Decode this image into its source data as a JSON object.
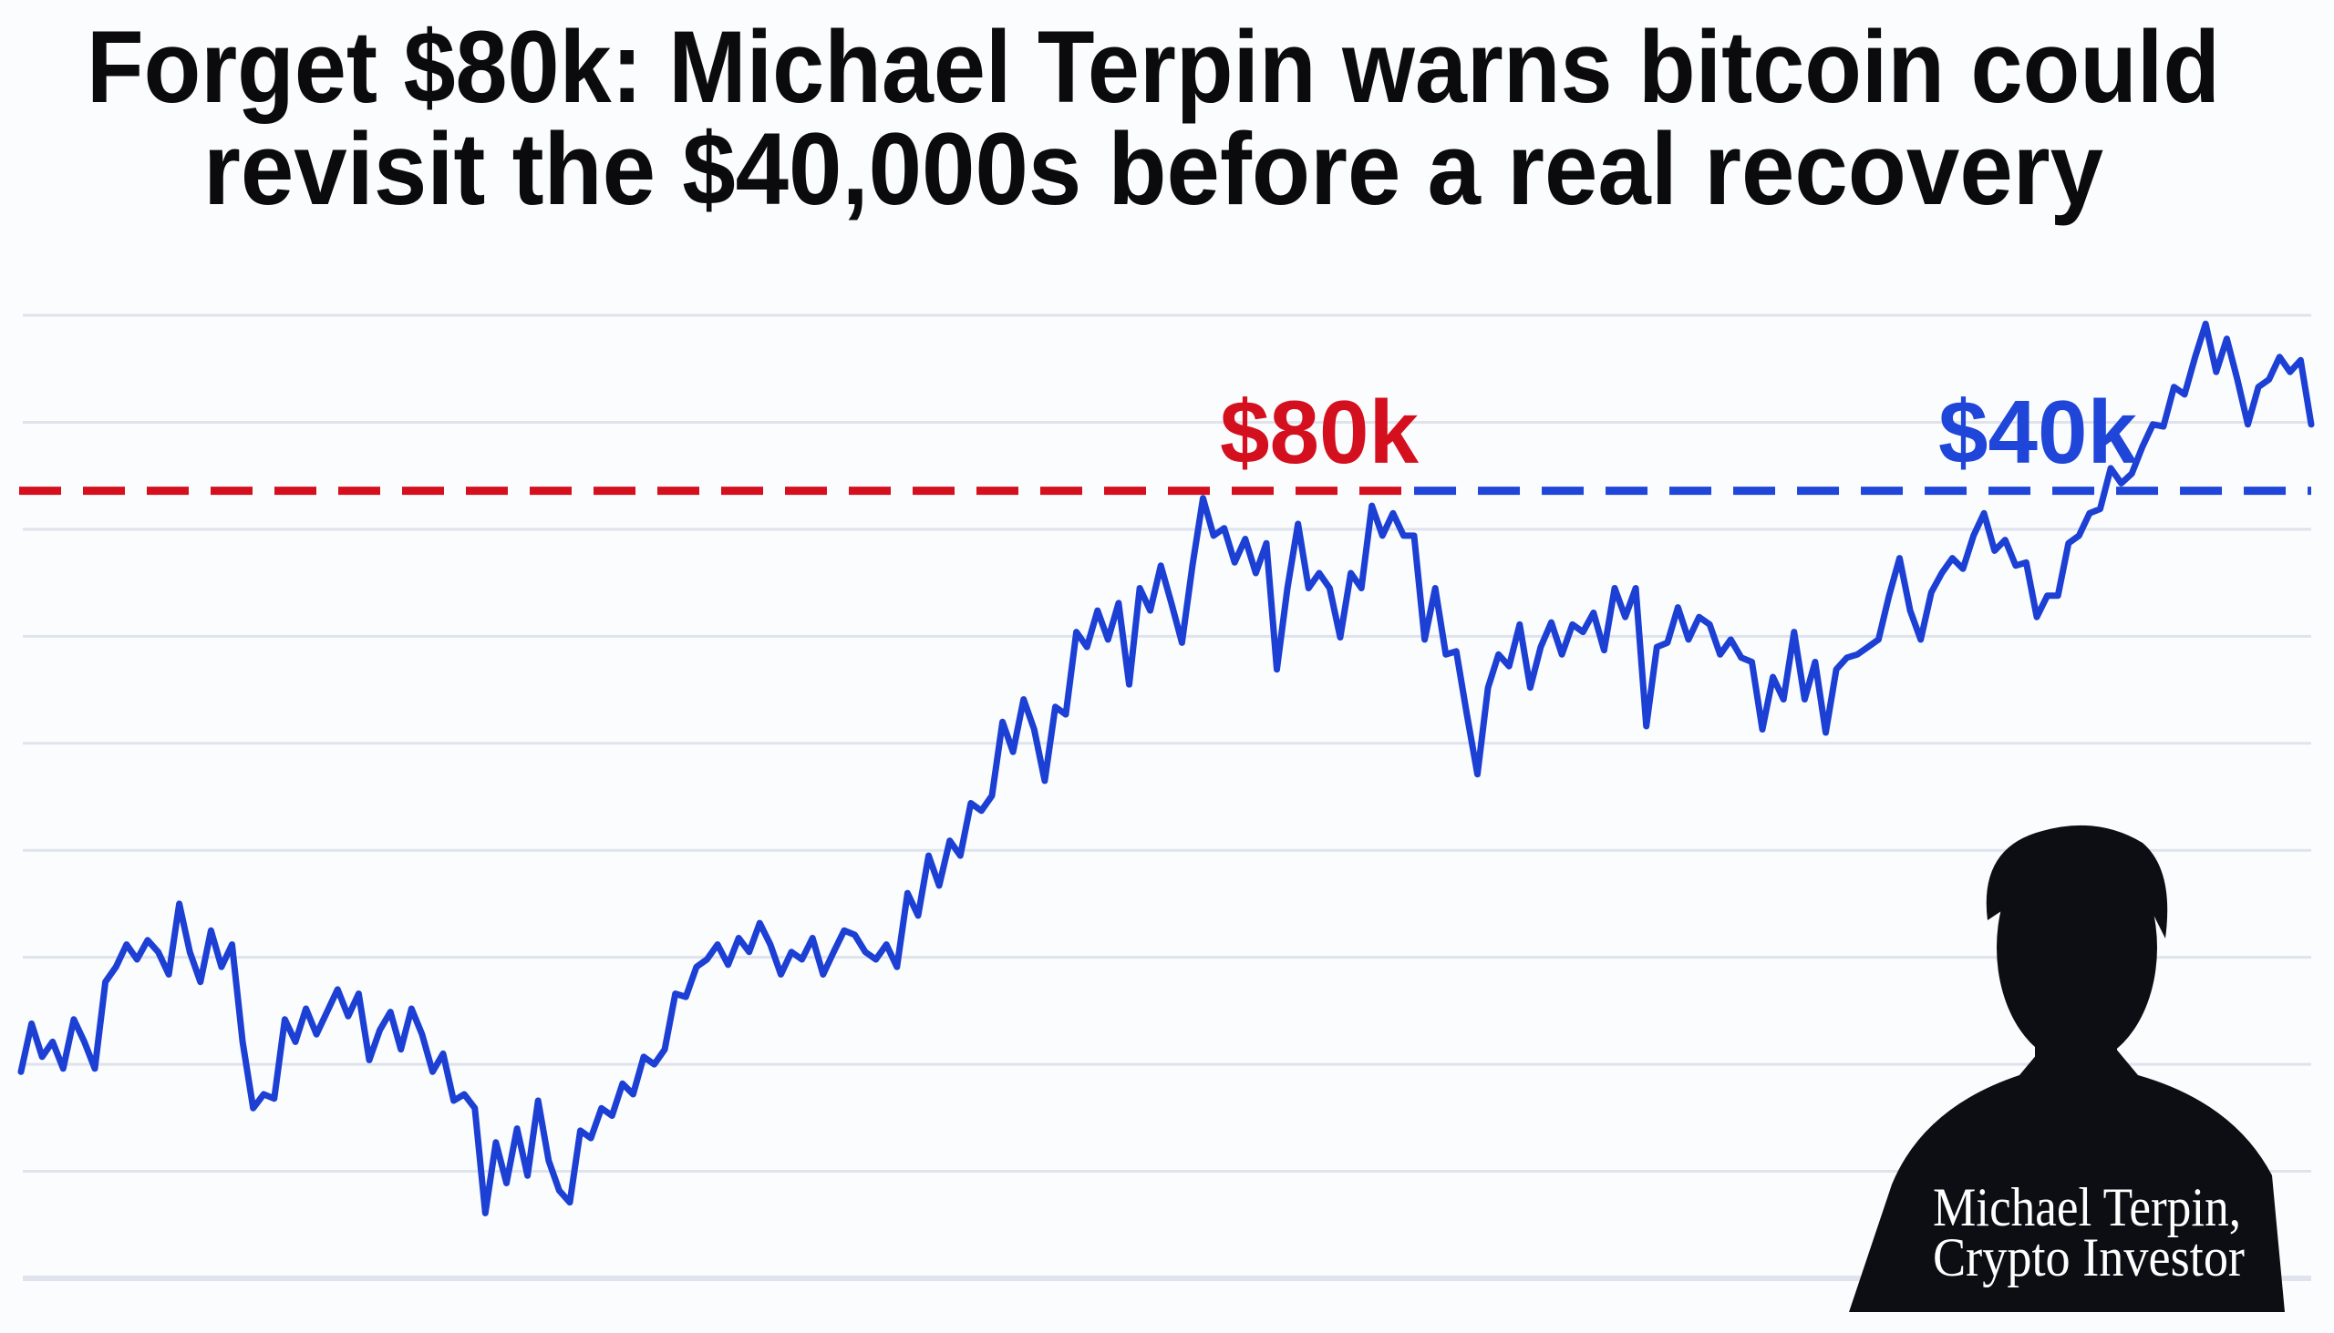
{
  "headline": {
    "line1": "Forget $80k: Michael Terpin warns bitcoin could",
    "line2": "revisit the $40,000s before a real recovery"
  },
  "caption": {
    "name": "Michael Terpin,",
    "role": "Crypto Investor"
  },
  "colors": {
    "price_line": "#1c3fd4",
    "red_level": "#d4101f",
    "blue_level": "#1f46d8",
    "grid": "#dfe3ec",
    "background": "#fbfcfe",
    "silhouette": "#0c0e13"
  },
  "chart_data": {
    "type": "line",
    "title": "",
    "xlabel": "",
    "ylabel": "",
    "grid": true,
    "gridlines_y": [
      0,
      10,
      20,
      30,
      40,
      50,
      60,
      70,
      80,
      90
    ],
    "ylim": [
      0,
      90
    ],
    "level_value": 73.6,
    "level_split_index": 132,
    "annotations": [
      {
        "text": "$80k",
        "color": "red"
      },
      {
        "text": "$40k",
        "color": "blue"
      }
    ],
    "values": [
      19.3,
      23.8,
      20.7,
      22.1,
      19.6,
      24.2,
      22.1,
      19.6,
      27.7,
      29.1,
      31.2,
      29.8,
      31.6,
      30.5,
      28.4,
      35.0,
      30.5,
      27.7,
      32.5,
      29.1,
      31.2,
      22.1,
      15.9,
      17.2,
      16.8,
      24.2,
      22.1,
      25.2,
      22.8,
      24.9,
      27.0,
      24.5,
      26.6,
      20.4,
      23.2,
      24.9,
      21.4,
      25.2,
      22.8,
      19.3,
      21.0,
      16.6,
      17.2,
      15.9,
      6.1,
      12.7,
      8.9,
      14.0,
      9.6,
      16.6,
      11.0,
      8.2,
      7.1,
      13.8,
      13.1,
      15.9,
      15.2,
      18.2,
      17.2,
      20.7,
      20.0,
      21.4,
      26.6,
      26.3,
      29.1,
      29.8,
      31.2,
      29.3,
      31.8,
      30.5,
      33.2,
      31.2,
      28.4,
      30.5,
      29.8,
      31.8,
      28.4,
      30.5,
      32.5,
      32.1,
      30.5,
      29.8,
      31.2,
      29.1,
      36.0,
      33.9,
      39.5,
      36.7,
      40.9,
      39.5,
      44.4,
      43.7,
      45.1,
      52.0,
      49.2,
      54.1,
      51.3,
      46.5,
      53.4,
      52.7,
      60.4,
      59.0,
      62.4,
      59.7,
      63.1,
      55.5,
      64.5,
      62.4,
      66.6,
      63.1,
      59.4,
      66.6,
      72.9,
      69.4,
      70.1,
      66.9,
      69.1,
      65.9,
      68.7,
      56.9,
      64.5,
      70.5,
      64.5,
      65.9,
      64.5,
      59.9,
      65.9,
      64.5,
      72.2,
      69.4,
      71.5,
      69.4,
      69.4,
      59.7,
      64.5,
      58.3,
      58.6,
      52.7,
      47.1,
      55.2,
      58.3,
      57.2,
      61.1,
      55.2,
      59.0,
      61.3,
      58.3,
      61.1,
      60.4,
      62.2,
      58.7,
      64.5,
      61.8,
      64.5,
      51.6,
      59.0,
      59.4,
      62.7,
      59.7,
      61.8,
      61.1,
      58.3,
      59.7,
      58.0,
      57.6,
      51.3,
      56.2,
      54.1,
      60.4,
      54.1,
      57.6,
      51.0,
      56.9,
      58.0,
      58.3,
      59.0,
      59.7,
      63.8,
      67.3,
      62.4,
      59.7,
      64.1,
      65.9,
      67.3,
      66.3,
      69.4,
      71.5,
      68.0,
      69.0,
      66.6,
      66.9,
      61.8,
      63.8,
      63.8,
      68.7,
      69.4,
      71.5,
      71.9,
      75.7,
      74.3,
      75.2,
      77.7,
      79.8,
      79.6,
      83.3,
      82.6,
      86.1,
      89.2,
      84.7,
      87.8,
      84.0,
      79.8,
      83.3,
      84.0,
      86.1,
      84.7,
      85.8,
      79.8
    ]
  }
}
